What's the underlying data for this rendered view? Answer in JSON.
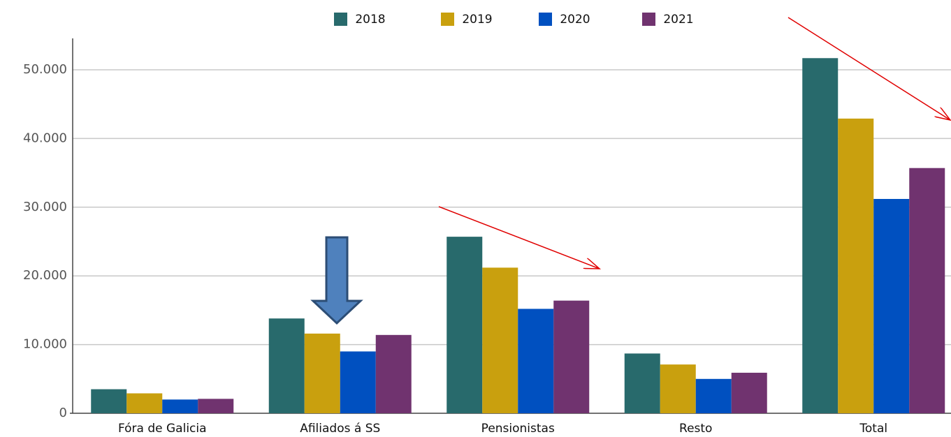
{
  "chart_data": {
    "type": "bar",
    "categories": [
      "Fóra de Galicia",
      "Afiliados á SS",
      "Pensionistas",
      "Resto",
      "Total"
    ],
    "series": [
      {
        "name": "2018",
        "color": "#286a6c",
        "values": [
          3500,
          13800,
          25700,
          8700,
          51700
        ]
      },
      {
        "name": "2019",
        "color": "#c9a00e",
        "values": [
          2900,
          11600,
          21200,
          7100,
          42900
        ]
      },
      {
        "name": "2020",
        "color": "#0050c0",
        "values": [
          2000,
          9000,
          15200,
          5000,
          31200
        ]
      },
      {
        "name": "2021",
        "color": "#70336f",
        "values": [
          2100,
          11400,
          16400,
          5900,
          35700
        ]
      }
    ],
    "ylim": [
      0,
      50000
    ],
    "yticks": [
      0,
      {
        "value": 10000,
        "label": "10.000"
      },
      {
        "value": 20000,
        "label": "20.000"
      },
      {
        "value": 30000,
        "label": "30.000"
      },
      {
        "value": 40000,
        "label": "40.000"
      },
      {
        "value": 50000,
        "label": "50.000"
      }
    ],
    "grid": true,
    "legend": "top"
  }
}
